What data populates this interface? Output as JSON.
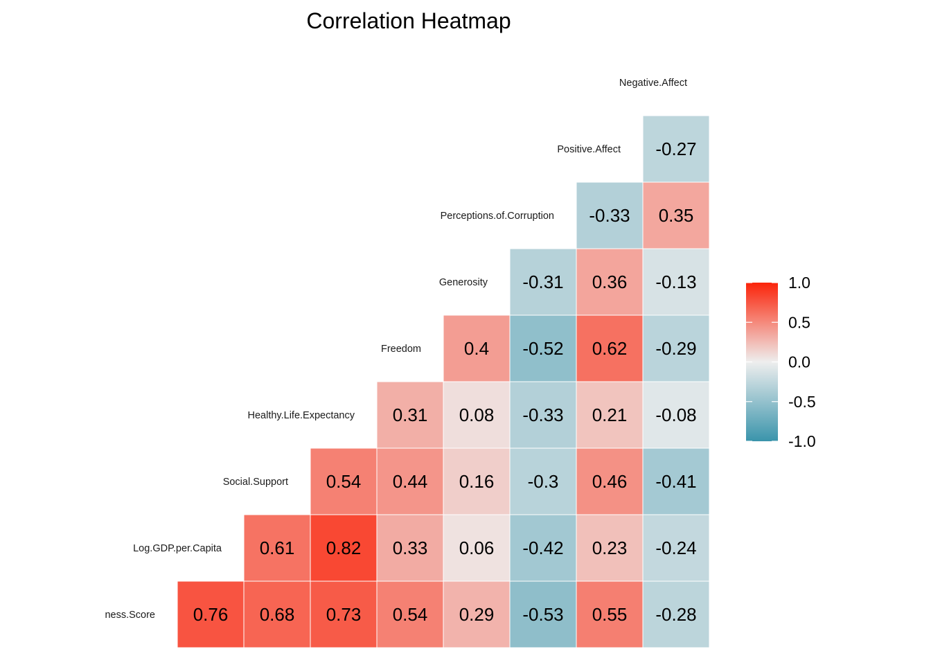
{
  "chart_data": {
    "type": "heatmap",
    "title": "Correlation Heatmap",
    "variables": [
      "ness.Score",
      "Log.GDP.per.Capita",
      "Social.Support",
      "Healthy.Life.Expectancy",
      "Freedom",
      "Generosity",
      "Perceptions.of.Corruption",
      "Positive.Affect",
      "Negative.Affect"
    ],
    "rows": [
      {
        "label": "ness.Score",
        "values": [
          0.76,
          0.68,
          0.73,
          0.54,
          0.29,
          -0.53,
          0.55,
          -0.28
        ]
      },
      {
        "label": "Log.GDP.per.Capita",
        "values": [
          0.61,
          0.82,
          0.33,
          0.06,
          -0.42,
          0.23,
          -0.24
        ]
      },
      {
        "label": "Social.Support",
        "values": [
          0.54,
          0.44,
          0.16,
          -0.3,
          0.46,
          -0.41
        ]
      },
      {
        "label": "Healthy.Life.Expectancy",
        "values": [
          0.31,
          0.08,
          -0.33,
          0.21,
          -0.08
        ]
      },
      {
        "label": "Freedom",
        "values": [
          0.4,
          -0.52,
          0.62,
          -0.29
        ]
      },
      {
        "label": "Generosity",
        "values": [
          -0.31,
          0.36,
          -0.13
        ]
      },
      {
        "label": "Perceptions.of.Corruption",
        "values": [
          -0.33,
          0.35
        ]
      },
      {
        "label": "Positive.Affect",
        "values": [
          -0.27
        ]
      },
      {
        "label": "Negative.Affect",
        "values": []
      }
    ],
    "color_scale": {
      "low": "#3a94ab",
      "mid": "#eeeeee",
      "high": "#fb240a",
      "limits": [
        -1.0,
        1.0
      ],
      "ticks": [
        "1.0",
        "0.5",
        "0.0",
        "-0.5",
        "-1.0"
      ]
    }
  }
}
